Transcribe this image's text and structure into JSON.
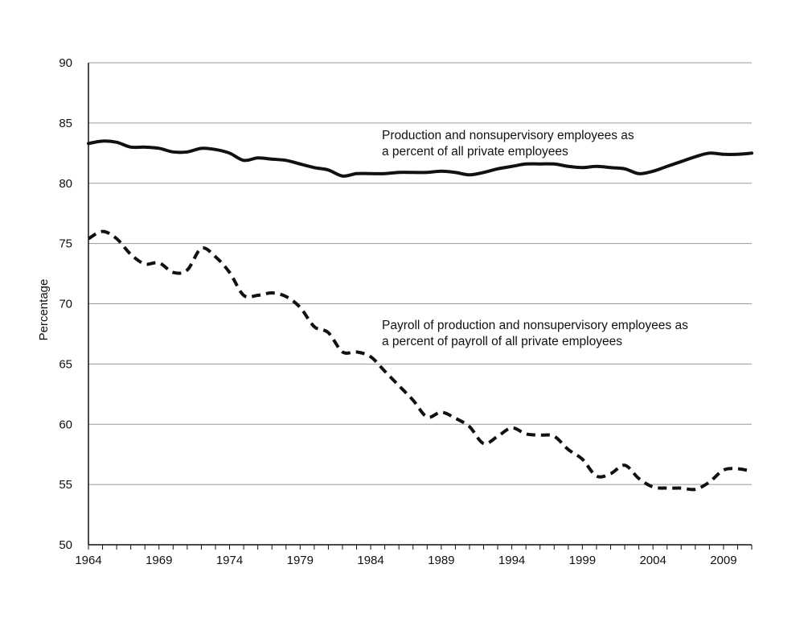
{
  "chart_data": {
    "type": "line",
    "title": "",
    "xlabel": "",
    "ylabel": "Percentage",
    "xlim": [
      1964,
      2011
    ],
    "ylim": [
      50,
      90
    ],
    "grid": true,
    "x_ticks": [
      "1964",
      "1969",
      "1974",
      "1979",
      "1984",
      "1989",
      "1994",
      "1999",
      "2004",
      "2009"
    ],
    "y_ticks": [
      "50",
      "55",
      "60",
      "65",
      "70",
      "75",
      "80",
      "85",
      "90"
    ],
    "annotations": [
      {
        "lines": [
          "Production and nonsupervisory employees as",
          "a percent of all private employees"
        ],
        "series": 0
      },
      {
        "lines": [
          "Payroll of production and nonsupervisory employees as",
          "a percent of payroll of all private employees"
        ],
        "series": 1
      }
    ],
    "series": [
      {
        "style": "solid",
        "color": "#111111",
        "x": [
          1964,
          1965,
          1966,
          1967,
          1968,
          1969,
          1970,
          1971,
          1972,
          1973,
          1974,
          1975,
          1976,
          1977,
          1978,
          1979,
          1980,
          1981,
          1982,
          1983,
          1984,
          1985,
          1986,
          1987,
          1988,
          1989,
          1990,
          1991,
          1992,
          1993,
          1994,
          1995,
          1996,
          1997,
          1998,
          1999,
          2000,
          2001,
          2002,
          2003,
          2004,
          2005,
          2006,
          2007,
          2008,
          2009,
          2010,
          2011
        ],
        "y": [
          83.3,
          83.5,
          83.4,
          83.0,
          83.0,
          82.9,
          82.6,
          82.6,
          82.9,
          82.8,
          82.5,
          81.9,
          82.1,
          82.0,
          81.9,
          81.6,
          81.3,
          81.1,
          80.6,
          80.8,
          80.8,
          80.8,
          80.9,
          80.9,
          80.9,
          81.0,
          80.9,
          80.7,
          80.9,
          81.2,
          81.4,
          81.6,
          81.6,
          81.6,
          81.4,
          81.3,
          81.4,
          81.3,
          81.2,
          80.8,
          81.0,
          81.4,
          81.8,
          82.2,
          82.5,
          82.4,
          82.4,
          82.5
        ]
      },
      {
        "style": "dashed",
        "color": "#111111",
        "x": [
          1964,
          1965,
          1966,
          1967,
          1968,
          1969,
          1970,
          1971,
          1972,
          1973,
          1974,
          1975,
          1976,
          1977,
          1978,
          1979,
          1980,
          1981,
          1982,
          1983,
          1984,
          1985,
          1986,
          1987,
          1988,
          1989,
          1990,
          1991,
          1992,
          1993,
          1994,
          1995,
          1996,
          1997,
          1998,
          1999,
          2000,
          2001,
          2002,
          2003,
          2004,
          2005,
          2006,
          2007,
          2008,
          2009,
          2010,
          2011
        ],
        "y": [
          75.4,
          76.0,
          75.4,
          74.1,
          73.3,
          73.4,
          72.6,
          72.8,
          74.6,
          73.9,
          72.6,
          70.7,
          70.7,
          70.9,
          70.6,
          69.7,
          68.1,
          67.6,
          66.0,
          66.0,
          65.6,
          64.4,
          63.2,
          62.0,
          60.6,
          61.0,
          60.5,
          59.8,
          58.4,
          59.0,
          59.7,
          59.2,
          59.1,
          59.0,
          57.9,
          57.1,
          55.7,
          55.9,
          56.6,
          55.5,
          54.8,
          54.7,
          54.7,
          54.6,
          55.2,
          56.2,
          56.3,
          56.1
        ]
      }
    ]
  }
}
